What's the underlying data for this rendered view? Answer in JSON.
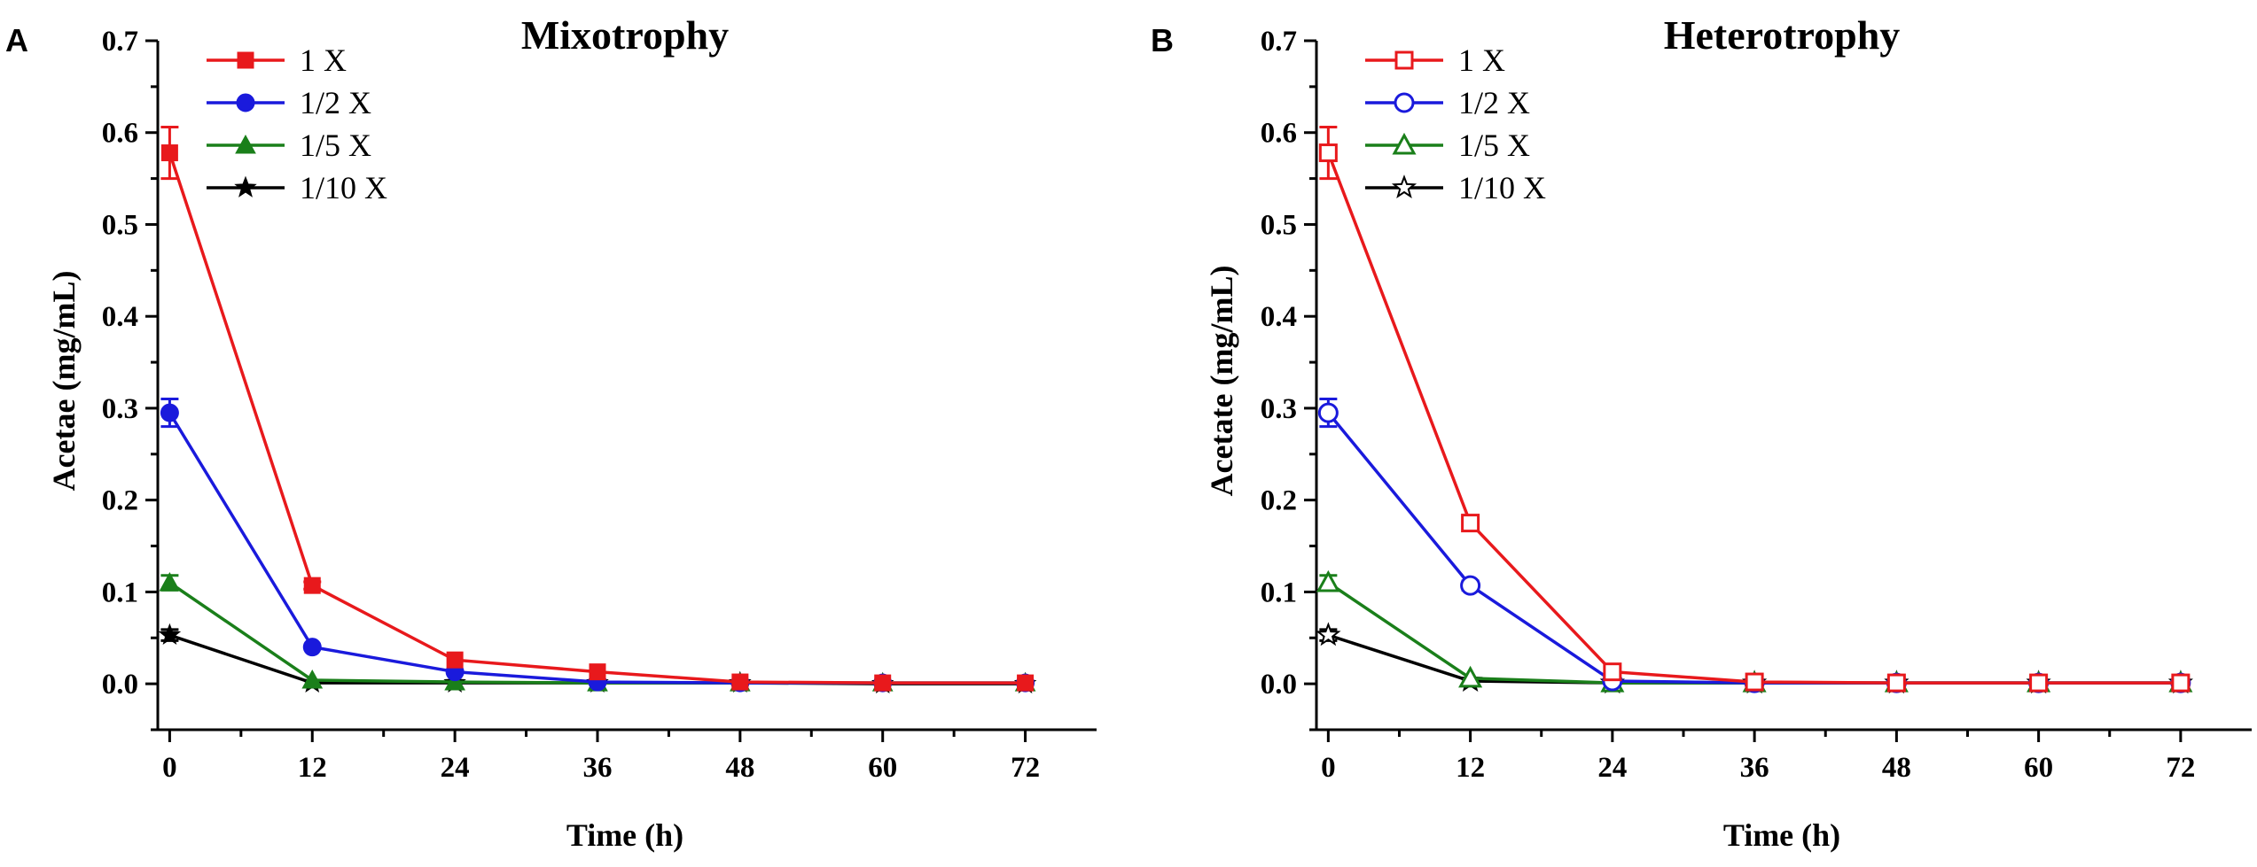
{
  "chart_data": [
    {
      "type": "line",
      "panel": "A",
      "title": "Mixotrophy",
      "xlabel": "Time (h)",
      "ylabel": "Acetae (mg/mL)",
      "x": [
        0,
        12,
        24,
        36,
        48,
        60,
        72
      ],
      "xticks": [
        "0",
        "12",
        "24",
        "36",
        "48",
        "60",
        "72"
      ],
      "yticks": [
        "0.0",
        "0.1",
        "0.2",
        "0.3",
        "0.4",
        "0.5",
        "0.6",
        "0.7"
      ],
      "xlim": [
        -1,
        78
      ],
      "ylim": [
        -0.05,
        0.7
      ],
      "legend_position": "top-left",
      "series": [
        {
          "name": "1 X",
          "color": "#e8191c",
          "marker": "square",
          "filled": true,
          "values": [
            0.578,
            0.107,
            0.026,
            0.013,
            0.002,
            0.001,
            0.001
          ],
          "errors": [
            0.028,
            0.004,
            0.003,
            0.002,
            0.001,
            0.001,
            0.001
          ]
        },
        {
          "name": "1/2 X",
          "color": "#1a1adc",
          "marker": "circle",
          "filled": true,
          "values": [
            0.295,
            0.04,
            0.013,
            0.002,
            0.001,
            0.001,
            0.001
          ],
          "errors": [
            0.015,
            0.003,
            0.002,
            0.001,
            0.001,
            0.001,
            0.001
          ]
        },
        {
          "name": "1/5 X",
          "color": "#1a7f1a",
          "marker": "triangle",
          "filled": true,
          "values": [
            0.11,
            0.004,
            0.002,
            0.001,
            0.001,
            0.001,
            0.001
          ],
          "errors": [
            0.008,
            0.002,
            0.001,
            0.001,
            0.001,
            0.001,
            0.001
          ]
        },
        {
          "name": "1/10 X",
          "color": "#000000",
          "marker": "star",
          "filled": true,
          "values": [
            0.053,
            0.001,
            0.001,
            0.001,
            0.001,
            0.0,
            0.0
          ],
          "errors": [
            0.006,
            0.001,
            0.001,
            0.001,
            0.001,
            0.001,
            0.001
          ]
        }
      ]
    },
    {
      "type": "line",
      "panel": "B",
      "title": "Heterotrophy",
      "xlabel": "Time (h)",
      "ylabel": "Acetate (mg/mL)",
      "x": [
        0,
        12,
        24,
        36,
        48,
        60,
        72
      ],
      "xticks": [
        "0",
        "12",
        "24",
        "36",
        "48",
        "60",
        "72"
      ],
      "yticks": [
        "0.0",
        "0.1",
        "0.2",
        "0.3",
        "0.4",
        "0.5",
        "0.6",
        "0.7"
      ],
      "xlim": [
        -1,
        78
      ],
      "ylim": [
        -0.05,
        0.7
      ],
      "legend_position": "top-left",
      "series": [
        {
          "name": "1 X",
          "color": "#e8191c",
          "marker": "square",
          "filled": false,
          "values": [
            0.578,
            0.175,
            0.013,
            0.002,
            0.001,
            0.001,
            0.001
          ],
          "errors": [
            0.028,
            0.007,
            0.003,
            0.001,
            0.001,
            0.001,
            0.001
          ]
        },
        {
          "name": "1/2 X",
          "color": "#1a1adc",
          "marker": "circle",
          "filled": false,
          "values": [
            0.295,
            0.107,
            0.003,
            0.001,
            0.001,
            0.001,
            0.001
          ],
          "errors": [
            0.015,
            0.005,
            0.001,
            0.001,
            0.001,
            0.001,
            0.001
          ]
        },
        {
          "name": "1/5 X",
          "color": "#1a7f1a",
          "marker": "triangle",
          "filled": false,
          "values": [
            0.11,
            0.006,
            0.001,
            0.001,
            0.001,
            0.001,
            0.001
          ],
          "errors": [
            0.008,
            0.002,
            0.001,
            0.001,
            0.001,
            0.001,
            0.001
          ]
        },
        {
          "name": "1/10 X",
          "color": "#000000",
          "marker": "star",
          "filled": false,
          "values": [
            0.053,
            0.003,
            0.001,
            0.001,
            0.001,
            0.001,
            0.001
          ],
          "errors": [
            0.006,
            0.001,
            0.001,
            0.001,
            0.001,
            0.001,
            0.001
          ]
        }
      ]
    }
  ]
}
